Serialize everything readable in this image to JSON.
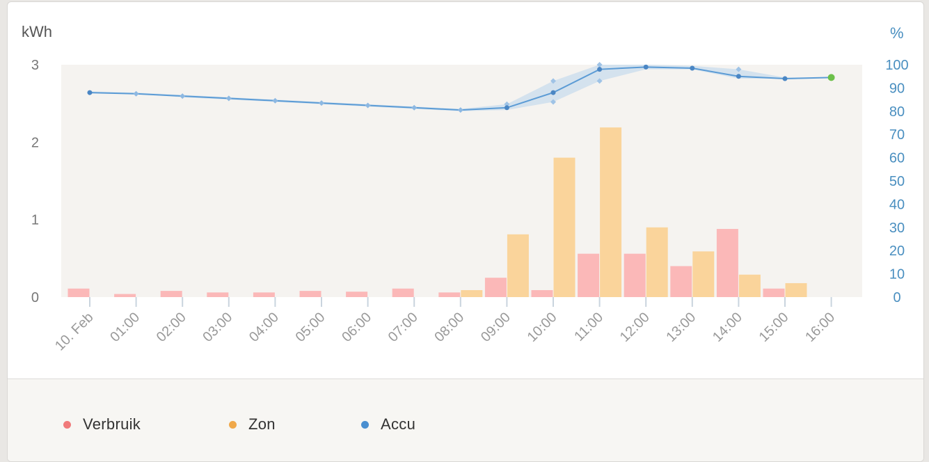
{
  "chart_data": {
    "type": "bar+line",
    "left_axis": {
      "unit": "kWh",
      "ticks": [
        "0",
        "1",
        "2",
        "3"
      ],
      "range": [
        0,
        3
      ]
    },
    "right_axis": {
      "unit": "%",
      "ticks": [
        "0",
        "10",
        "20",
        "30",
        "40",
        "50",
        "60",
        "70",
        "80",
        "90",
        "100"
      ],
      "range": [
        0,
        100
      ]
    },
    "x_labels": [
      "10. Feb",
      "01:00",
      "02:00",
      "03:00",
      "04:00",
      "05:00",
      "06:00",
      "07:00",
      "08:00",
      "09:00",
      "10:00",
      "11:00",
      "12:00",
      "13:00",
      "14:00",
      "15:00",
      "16:00"
    ],
    "series": [
      {
        "name": "Verbruik",
        "type": "bar",
        "color": "#fbb8b8",
        "legend_color": "#f07a7a",
        "values": [
          0.11,
          0.04,
          0.08,
          0.06,
          0.06,
          0.08,
          0.07,
          0.11,
          0.06,
          0.25,
          0.09,
          0.56,
          0.56,
          0.4,
          0.88,
          0.11
        ]
      },
      {
        "name": "Zon",
        "type": "bar",
        "color": "#fad49b",
        "legend_color": "#f0a849",
        "values": [
          0,
          0,
          0,
          0,
          0,
          0,
          0,
          0,
          0.09,
          0.81,
          1.8,
          2.19,
          0.9,
          0.59,
          0.29,
          0.18
        ]
      },
      {
        "name": "Accu",
        "type": "line",
        "color": "#5b9bd5",
        "legend_color": "#4a8fd0",
        "values": [
          88,
          87.5,
          86.5,
          85.5,
          84.5,
          83.5,
          82.5,
          81.5,
          80.5,
          81.5,
          88,
          98,
          99,
          98.5,
          95,
          94,
          94.5
        ],
        "band_min": [
          88,
          87.5,
          86,
          85,
          84,
          83,
          82,
          81,
          80,
          80.5,
          84,
          93,
          98,
          98,
          94,
          94,
          94.5
        ],
        "band_max": [
          88.5,
          88,
          87,
          86,
          85,
          84,
          83,
          82,
          81,
          83,
          93,
          100,
          100,
          99.5,
          98,
          94.5,
          94.5
        ]
      }
    ],
    "plot_background": "#f5f3f0"
  },
  "legend": [
    {
      "label": "Verbruik",
      "color": "#f07a7a"
    },
    {
      "label": "Zon",
      "color": "#f0a849"
    },
    {
      "label": "Accu",
      "color": "#4a8fd0"
    }
  ]
}
